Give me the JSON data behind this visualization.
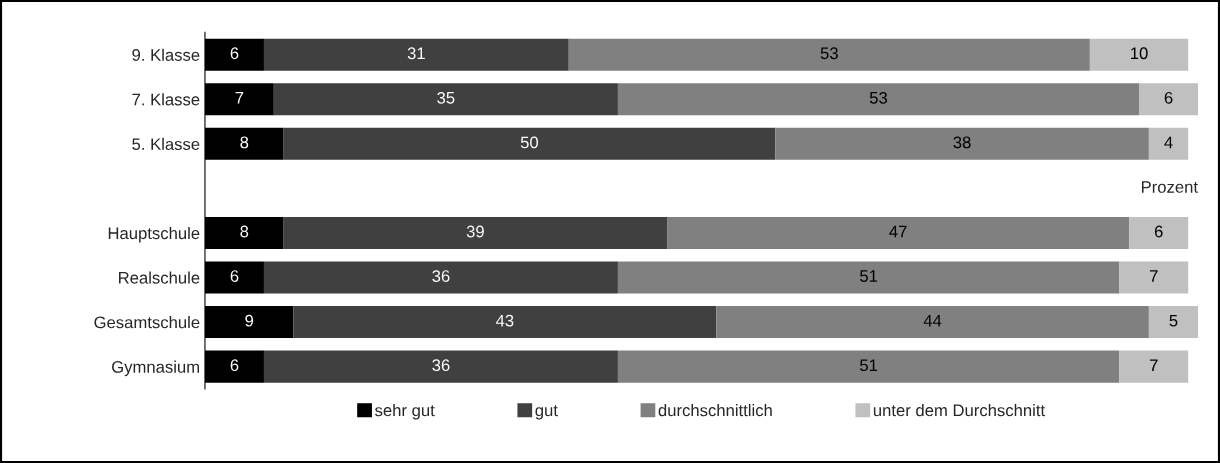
{
  "chart_data": {
    "type": "bar",
    "orientation": "horizontal",
    "stacked": true,
    "data_labels": true,
    "legend": "bottom",
    "grid": false,
    "categories": [
      "9. Klasse",
      "7. Klasse",
      "5. Klasse",
      null,
      "Hauptschule",
      "Realschule",
      "Gesamtschule",
      "Gymnasium"
    ],
    "series": [
      {
        "name": "sehr gut",
        "color": "#000000",
        "values": [
          6,
          7,
          8,
          null,
          8,
          6,
          9,
          6
        ]
      },
      {
        "name": "gut",
        "color": "#404040",
        "values": [
          31,
          35,
          50,
          null,
          39,
          36,
          43,
          36
        ]
      },
      {
        "name": "durchschnittlich",
        "color": "#808080",
        "values": [
          53,
          53,
          38,
          null,
          47,
          51,
          44,
          51
        ]
      },
      {
        "name": "unter dem Durchschnitt",
        "color": "#c0c0c0",
        "values": [
          10,
          6,
          4,
          null,
          6,
          7,
          5,
          7
        ]
      }
    ],
    "annotations": [
      "Prozent"
    ]
  }
}
